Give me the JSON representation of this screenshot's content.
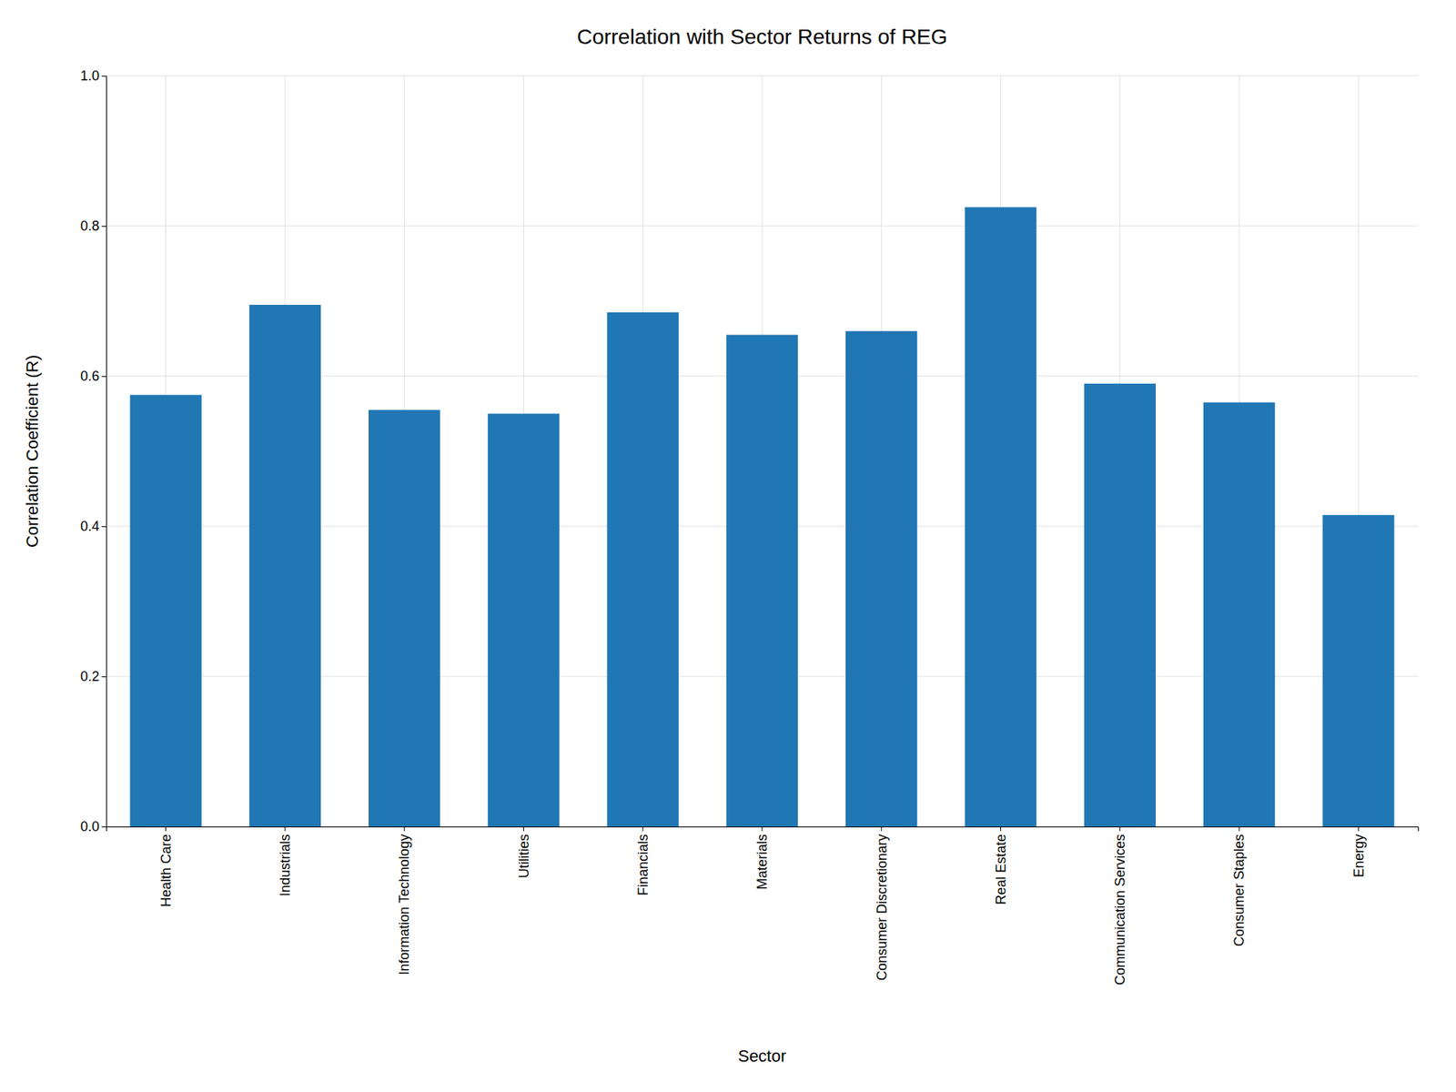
{
  "chart_data": {
    "type": "bar",
    "title": "Correlation with Sector Returns of REG",
    "xlabel": "Sector",
    "ylabel": "Correlation Coefficient (R)",
    "categories": [
      "Health Care",
      "Industrials",
      "Information Technology",
      "Utilities",
      "Financials",
      "Materials",
      "Consumer Discretionary",
      "Real Estate",
      "Communication Services",
      "Consumer Staples",
      "Energy"
    ],
    "values": [
      0.575,
      0.695,
      0.555,
      0.55,
      0.685,
      0.655,
      0.66,
      0.825,
      0.59,
      0.565,
      0.415
    ],
    "color": "#2077b4",
    "ylim": [
      0.0,
      1.0
    ],
    "yticks": [
      {
        "value": 0.0,
        "label": "0.0"
      },
      0.2,
      0.4,
      0.6,
      0.8,
      {
        "value": 1.0,
        "label": "1.0"
      }
    ],
    "grid": true
  }
}
